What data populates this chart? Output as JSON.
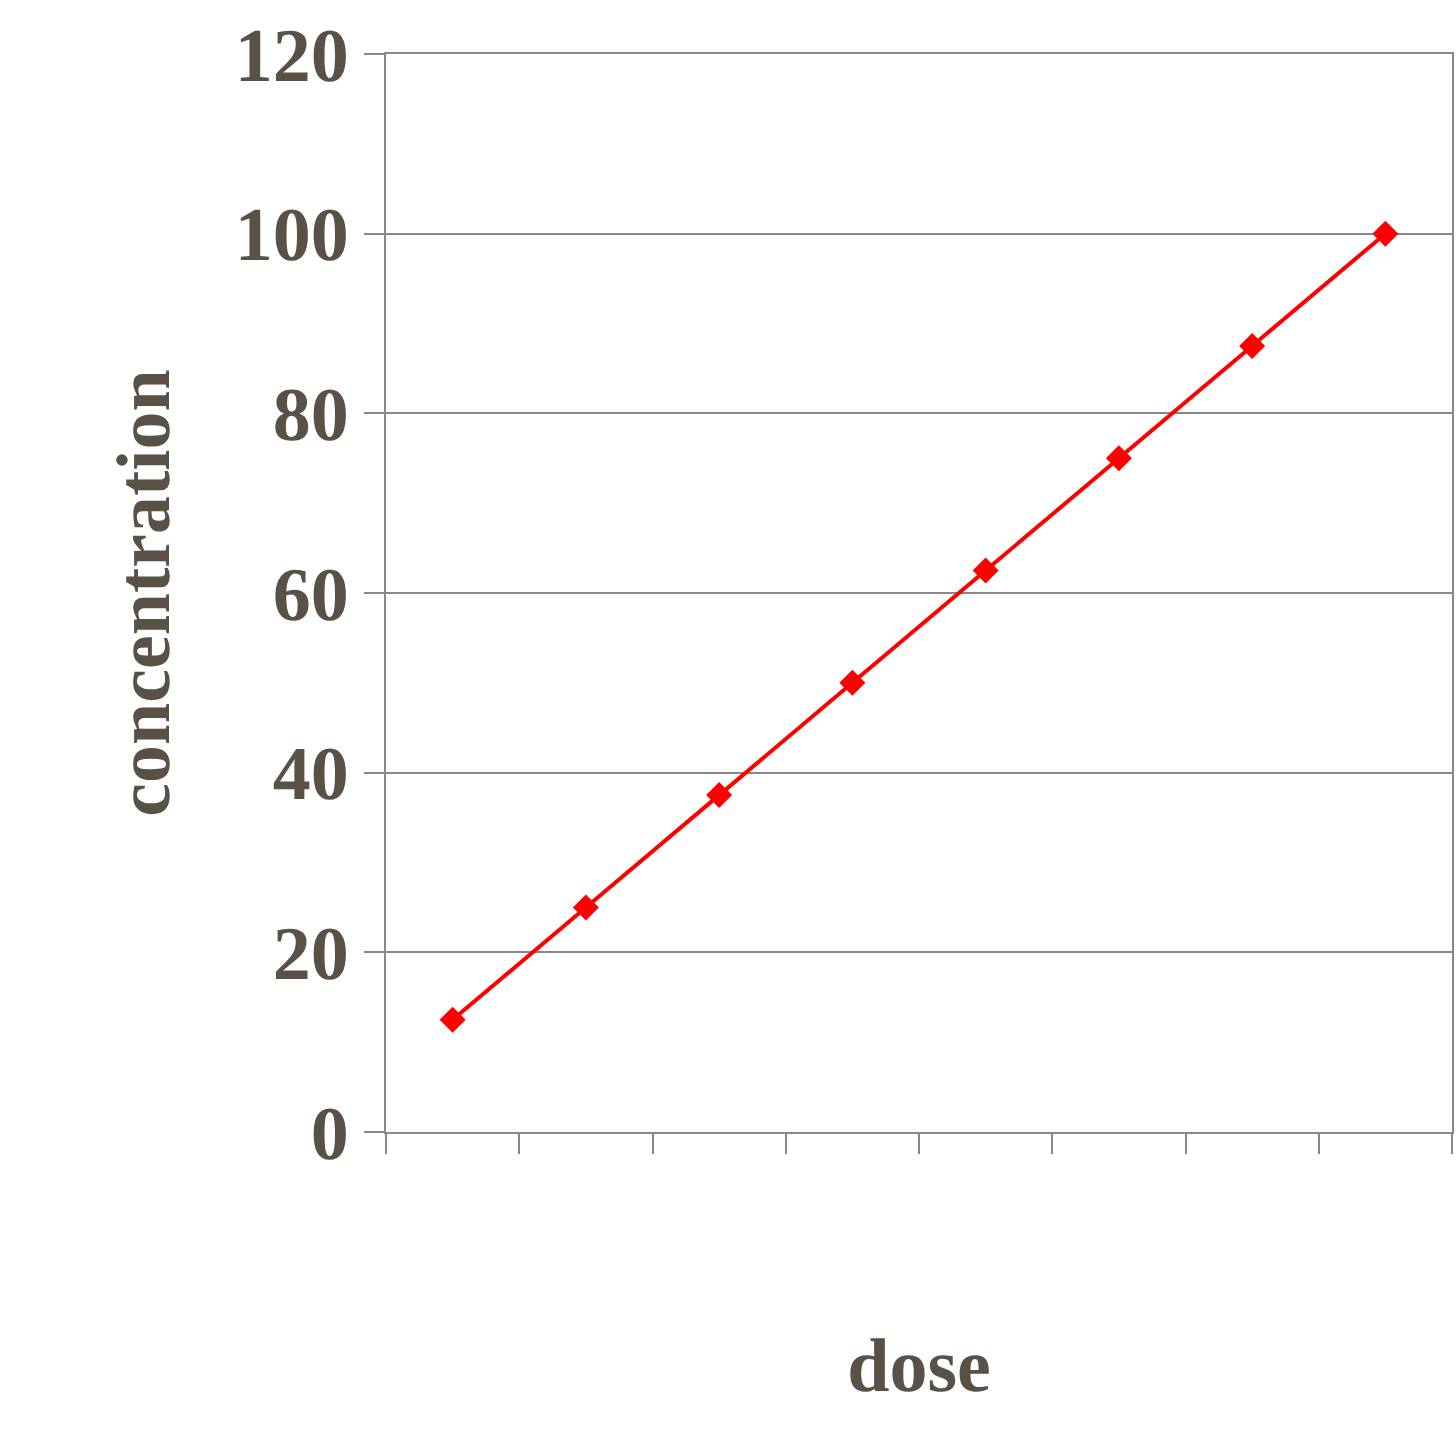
{
  "chart_data": {
    "type": "line",
    "xlabel": "dose",
    "ylabel": "concentration",
    "categories": [
      null,
      null,
      null,
      null,
      null,
      null,
      null,
      null
    ],
    "series": [
      {
        "color": "#ff0000",
        "values": [
          12.5,
          25,
          37.5,
          50,
          62.5,
          75,
          87.5,
          100
        ]
      }
    ],
    "ylim": [
      0,
      120
    ],
    "yticks": [
      0,
      20,
      40,
      60,
      80,
      100,
      120
    ],
    "grid": "y",
    "marker": "diamond",
    "line_style": "solid",
    "tick_labels": "y"
  }
}
